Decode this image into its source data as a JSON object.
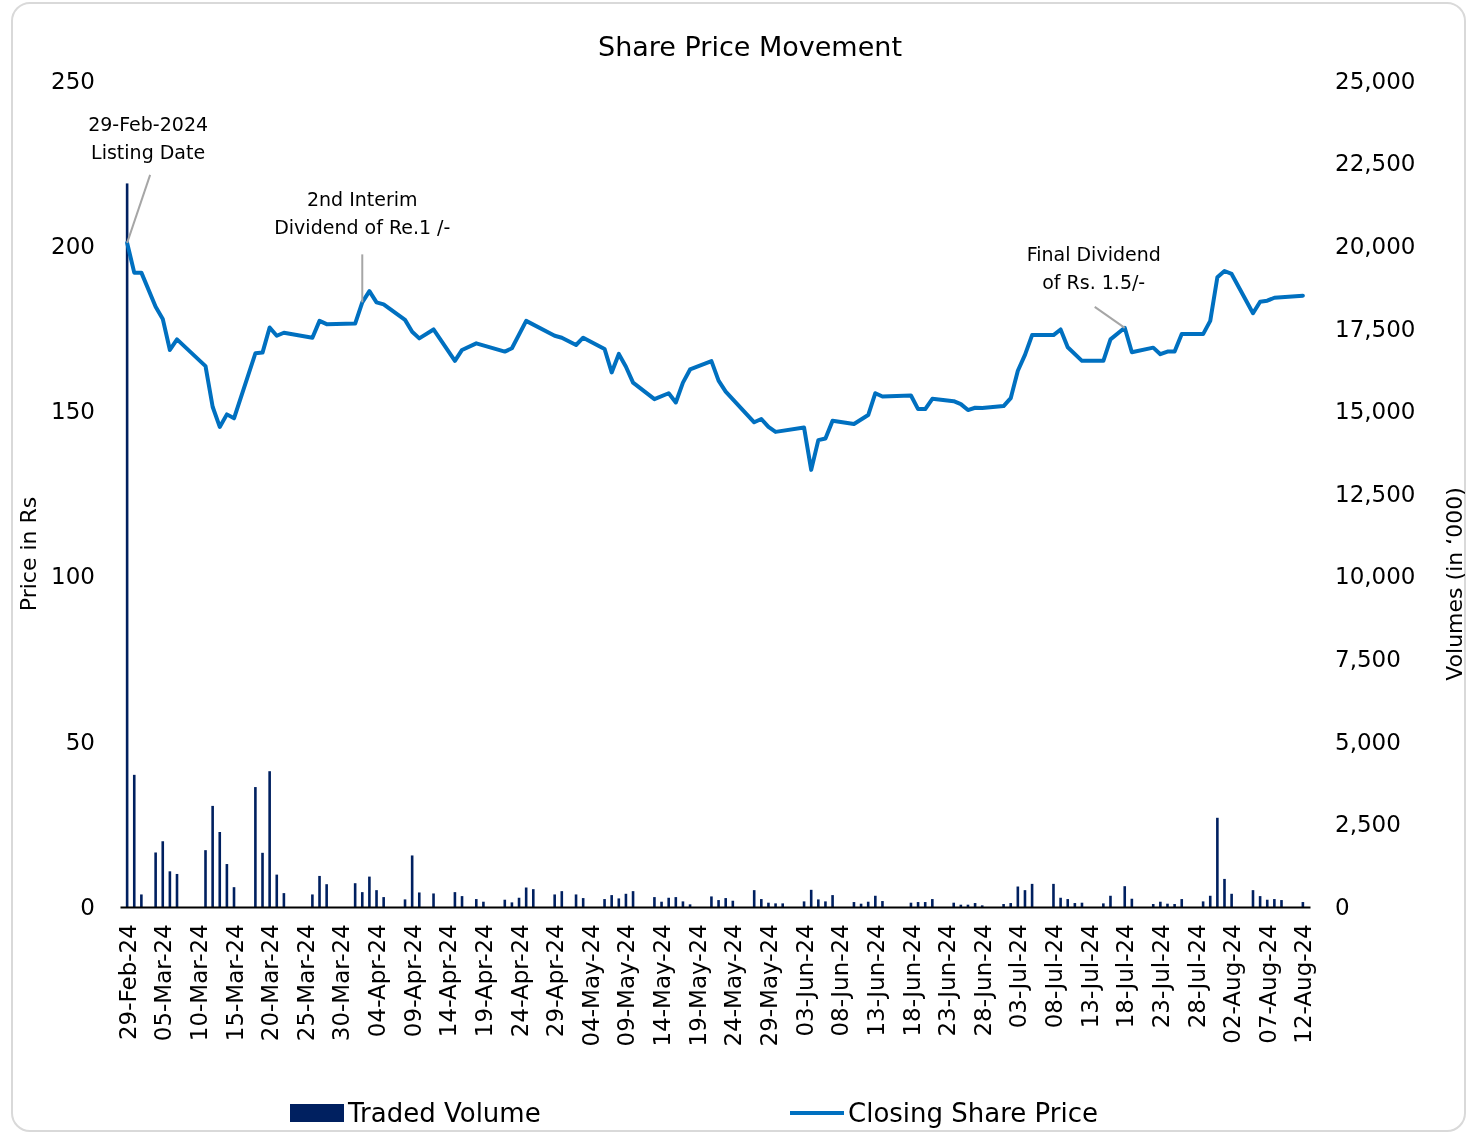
{
  "chart_data": {
    "type": "line",
    "title": "Share Price Movement",
    "ylabel": "Price in Rs",
    "y2label": "Volumes (in ‘000)",
    "xlim": [
      "2024-02-28",
      "2024-08-13"
    ],
    "xticks": [
      {
        "value": "2024-02-29",
        "label": "29-Feb-24"
      },
      {
        "value": "2024-03-05",
        "label": "05-Mar-24"
      },
      {
        "value": "2024-03-10",
        "label": "10-Mar-24"
      },
      {
        "value": "2024-03-15",
        "label": "15-Mar-24"
      },
      {
        "value": "2024-03-20",
        "label": "20-Mar-24"
      },
      {
        "value": "2024-03-25",
        "label": "25-Mar-24"
      },
      {
        "value": "2024-03-30",
        "label": "30-Mar-24"
      },
      {
        "value": "2024-04-04",
        "label": "04-Apr-24"
      },
      {
        "value": "2024-04-09",
        "label": "09-Apr-24"
      },
      {
        "value": "2024-04-14",
        "label": "14-Apr-24"
      },
      {
        "value": "2024-04-19",
        "label": "19-Apr-24"
      },
      {
        "value": "2024-04-24",
        "label": "24-Apr-24"
      },
      {
        "value": "2024-04-29",
        "label": "29-Apr-24"
      },
      {
        "value": "2024-05-04",
        "label": "04-May-24"
      },
      {
        "value": "2024-05-09",
        "label": "09-May-24"
      },
      {
        "value": "2024-05-14",
        "label": "14-May-24"
      },
      {
        "value": "2024-05-19",
        "label": "19-May-24"
      },
      {
        "value": "2024-05-24",
        "label": "24-May-24"
      },
      {
        "value": "2024-05-29",
        "label": "29-May-24"
      },
      {
        "value": "2024-06-03",
        "label": "03-Jun-24"
      },
      {
        "value": "2024-06-08",
        "label": "08-Jun-24"
      },
      {
        "value": "2024-06-13",
        "label": "13-Jun-24"
      },
      {
        "value": "2024-06-18",
        "label": "18-Jun-24"
      },
      {
        "value": "2024-06-23",
        "label": "23-Jun-24"
      },
      {
        "value": "2024-06-28",
        "label": "28-Jun-24"
      },
      {
        "value": "2024-07-03",
        "label": "03-Jul-24"
      },
      {
        "value": "2024-07-08",
        "label": "08-Jul-24"
      },
      {
        "value": "2024-07-13",
        "label": "13-Jul-24"
      },
      {
        "value": "2024-07-18",
        "label": "18-Jul-24"
      },
      {
        "value": "2024-07-23",
        "label": "23-Jul-24"
      },
      {
        "value": "2024-07-28",
        "label": "28-Jul-24"
      },
      {
        "value": "2024-08-02",
        "label": "02-Aug-24"
      },
      {
        "value": "2024-08-07",
        "label": "07-Aug-24"
      },
      {
        "value": "2024-08-12",
        "label": "12-Aug-24"
      }
    ],
    "ylim": [
      0,
      250
    ],
    "yticks": [
      0,
      50,
      100,
      150,
      200,
      250
    ],
    "y2lim": [
      0,
      25000
    ],
    "y2ticks": [
      0,
      {
        "value": 2500,
        "label": "2,500"
      },
      {
        "value": 5000,
        "label": "5,000"
      },
      {
        "value": 7500,
        "label": "7,500"
      },
      {
        "value": 10000,
        "label": "10,000"
      },
      {
        "value": 12500,
        "label": "12,500"
      },
      {
        "value": 15000,
        "label": "15,000"
      },
      {
        "value": 17500,
        "label": "17,500"
      },
      {
        "value": 20000,
        "label": "20,000"
      },
      {
        "value": 22500,
        "label": "22,500"
      },
      {
        "value": 25000,
        "label": "25,000"
      }
    ],
    "legend": "bottom",
    "series": [
      {
        "name": "Traded Volume",
        "type": "bar",
        "axis": "y2",
        "color": "#002060",
        "x": [
          "2024-02-29",
          "2024-03-01",
          "2024-03-02",
          "2024-03-04",
          "2024-03-05",
          "2024-03-06",
          "2024-03-07",
          "2024-03-11",
          "2024-03-12",
          "2024-03-13",
          "2024-03-14",
          "2024-03-15",
          "2024-03-18",
          "2024-03-19",
          "2024-03-20",
          "2024-03-21",
          "2024-03-22",
          "2024-03-26",
          "2024-03-27",
          "2024-03-28",
          "2024-04-01",
          "2024-04-02",
          "2024-04-03",
          "2024-04-04",
          "2024-04-05",
          "2024-04-08",
          "2024-04-09",
          "2024-04-10",
          "2024-04-12",
          "2024-04-15",
          "2024-04-16",
          "2024-04-18",
          "2024-04-19",
          "2024-04-22",
          "2024-04-23",
          "2024-04-24",
          "2024-04-25",
          "2024-04-26",
          "2024-04-29",
          "2024-04-30",
          "2024-05-02",
          "2024-05-03",
          "2024-05-06",
          "2024-05-07",
          "2024-05-08",
          "2024-05-09",
          "2024-05-10",
          "2024-05-13",
          "2024-05-14",
          "2024-05-15",
          "2024-05-16",
          "2024-05-17",
          "2024-05-18",
          "2024-05-21",
          "2024-05-22",
          "2024-05-23",
          "2024-05-24",
          "2024-05-27",
          "2024-05-28",
          "2024-05-29",
          "2024-05-30",
          "2024-05-31",
          "2024-06-03",
          "2024-06-04",
          "2024-06-05",
          "2024-06-06",
          "2024-06-07",
          "2024-06-10",
          "2024-06-11",
          "2024-06-12",
          "2024-06-13",
          "2024-06-14",
          "2024-06-18",
          "2024-06-19",
          "2024-06-20",
          "2024-06-21",
          "2024-06-24",
          "2024-06-25",
          "2024-06-26",
          "2024-06-27",
          "2024-06-28",
          "2024-07-01",
          "2024-07-02",
          "2024-07-03",
          "2024-07-04",
          "2024-07-05",
          "2024-07-08",
          "2024-07-09",
          "2024-07-10",
          "2024-07-11",
          "2024-07-12",
          "2024-07-15",
          "2024-07-16",
          "2024-07-18",
          "2024-07-19",
          "2024-07-22",
          "2024-07-23",
          "2024-07-24",
          "2024-07-25",
          "2024-07-26",
          "2024-07-29",
          "2024-07-30",
          "2024-07-31",
          "2024-08-01",
          "2024-08-02",
          "2024-08-05",
          "2024-08-06",
          "2024-08-07",
          "2024-08-08",
          "2024-08-09",
          "2024-08-12"
        ],
        "values": [
          21900,
          4000,
          380,
          1650,
          1990,
          1080,
          1000,
          1720,
          3060,
          2270,
          1300,
          600,
          3630,
          1640,
          4110,
          980,
          420,
          380,
          940,
          690,
          720,
          450,
          920,
          510,
          300,
          230,
          1560,
          440,
          410,
          450,
          330,
          240,
          160,
          220,
          140,
          280,
          590,
          540,
          380,
          480,
          380,
          270,
          240,
          360,
          260,
          400,
          480,
          300,
          160,
          280,
          300,
          170,
          80,
          320,
          210,
          270,
          190,
          510,
          240,
          130,
          110,
          110,
          170,
          520,
          230,
          170,
          360,
          150,
          100,
          160,
          340,
          180,
          130,
          150,
          150,
          240,
          130,
          70,
          70,
          120,
          50,
          90,
          120,
          620,
          510,
          700,
          700,
          280,
          240,
          120,
          130,
          110,
          340,
          630,
          250,
          90,
          160,
          100,
          90,
          240,
          170,
          340,
          2700,
          850,
          400,
          510,
          330,
          220,
          240,
          210,
          150
        ]
      },
      {
        "name": "Closing Share Price",
        "color": "#0070c0",
        "x": [
          "2024-02-29",
          "2024-03-01",
          "2024-03-02",
          "2024-03-04",
          "2024-03-05",
          "2024-03-06",
          "2024-03-07",
          "2024-03-11",
          "2024-03-12",
          "2024-03-13",
          "2024-03-14",
          "2024-03-15",
          "2024-03-18",
          "2024-03-19",
          "2024-03-20",
          "2024-03-21",
          "2024-03-22",
          "2024-03-26",
          "2024-03-27",
          "2024-03-28",
          "2024-04-01",
          "2024-04-02",
          "2024-04-03",
          "2024-04-04",
          "2024-04-05",
          "2024-04-08",
          "2024-04-09",
          "2024-04-10",
          "2024-04-12",
          "2024-04-15",
          "2024-04-16",
          "2024-04-18",
          "2024-04-22",
          "2024-04-23",
          "2024-04-25",
          "2024-04-29",
          "2024-04-30",
          "2024-05-02",
          "2024-05-03",
          "2024-05-06",
          "2024-05-07",
          "2024-05-08",
          "2024-05-09",
          "2024-05-10",
          "2024-05-13",
          "2024-05-15",
          "2024-05-16",
          "2024-05-17",
          "2024-05-18",
          "2024-05-21",
          "2024-05-22",
          "2024-05-23",
          "2024-05-27",
          "2024-05-28",
          "2024-05-29",
          "2024-05-30",
          "2024-06-03",
          "2024-06-04",
          "2024-06-05",
          "2024-06-06",
          "2024-06-07",
          "2024-06-10",
          "2024-06-12",
          "2024-06-13",
          "2024-06-14",
          "2024-06-18",
          "2024-06-19",
          "2024-06-20",
          "2024-06-21",
          "2024-06-24",
          "2024-06-25",
          "2024-06-26",
          "2024-06-27",
          "2024-06-28",
          "2024-07-01",
          "2024-07-02",
          "2024-07-03",
          "2024-07-04",
          "2024-07-05",
          "2024-07-08",
          "2024-07-09",
          "2024-07-10",
          "2024-07-12",
          "2024-07-15",
          "2024-07-16",
          "2024-07-18",
          "2024-07-19",
          "2024-07-22",
          "2024-07-23",
          "2024-07-24",
          "2024-07-25",
          "2024-07-26",
          "2024-07-29",
          "2024-07-30",
          "2024-07-31",
          "2024-08-01",
          "2024-08-02",
          "2024-08-05",
          "2024-08-06",
          "2024-08-07",
          "2024-08-08",
          "2024-08-12"
        ],
        "values": [
          201,
          192,
          192,
          181.7,
          178,
          168.6,
          171.8,
          163.7,
          151.4,
          145.3,
          149.1,
          147.9,
          167.6,
          167.8,
          175.4,
          172.9,
          173.8,
          172.3,
          177.4,
          176.4,
          176.6,
          183,
          186.4,
          183,
          182.4,
          177.7,
          174.1,
          172.1,
          174.8,
          165.3,
          168.6,
          170.6,
          168.1,
          169.1,
          177.4,
          172.9,
          172.3,
          170.1,
          172.3,
          168.9,
          161.8,
          167.4,
          163.5,
          158.7,
          153.7,
          155.5,
          152.7,
          158.7,
          162.7,
          165.2,
          159.3,
          156,
          146.7,
          147.7,
          145.3,
          143.8,
          145.1,
          132.3,
          141.3,
          141.8,
          147.2,
          146.2,
          148.9,
          155.5,
          154.5,
          154.8,
          150.7,
          150.7,
          153.8,
          153.1,
          152.2,
          150.4,
          151.1,
          151,
          151.6,
          154,
          162.3,
          167.1,
          173.1,
          173.1,
          174.8,
          169.4,
          165.3,
          165.3,
          171.8,
          175.3,
          167.9,
          169.3,
          167.3,
          168.1,
          168.1,
          173.4,
          173.4,
          177.4,
          190.6,
          192.5,
          191.6,
          179.7,
          183.2,
          183.5,
          184.4,
          185
        ]
      }
    ],
    "annotations": [
      {
        "text": "29-Feb-2024\nListing Date",
        "x": "2024-02-29",
        "y": 201
      },
      {
        "text": "2nd Interim\nDividend of Re.1 /-",
        "x": "2024-04-02",
        "y": 183
      },
      {
        "text": "Final Dividend\nof Rs. 1.5/-",
        "x": "2024-07-18",
        "y": 175.3
      }
    ]
  }
}
